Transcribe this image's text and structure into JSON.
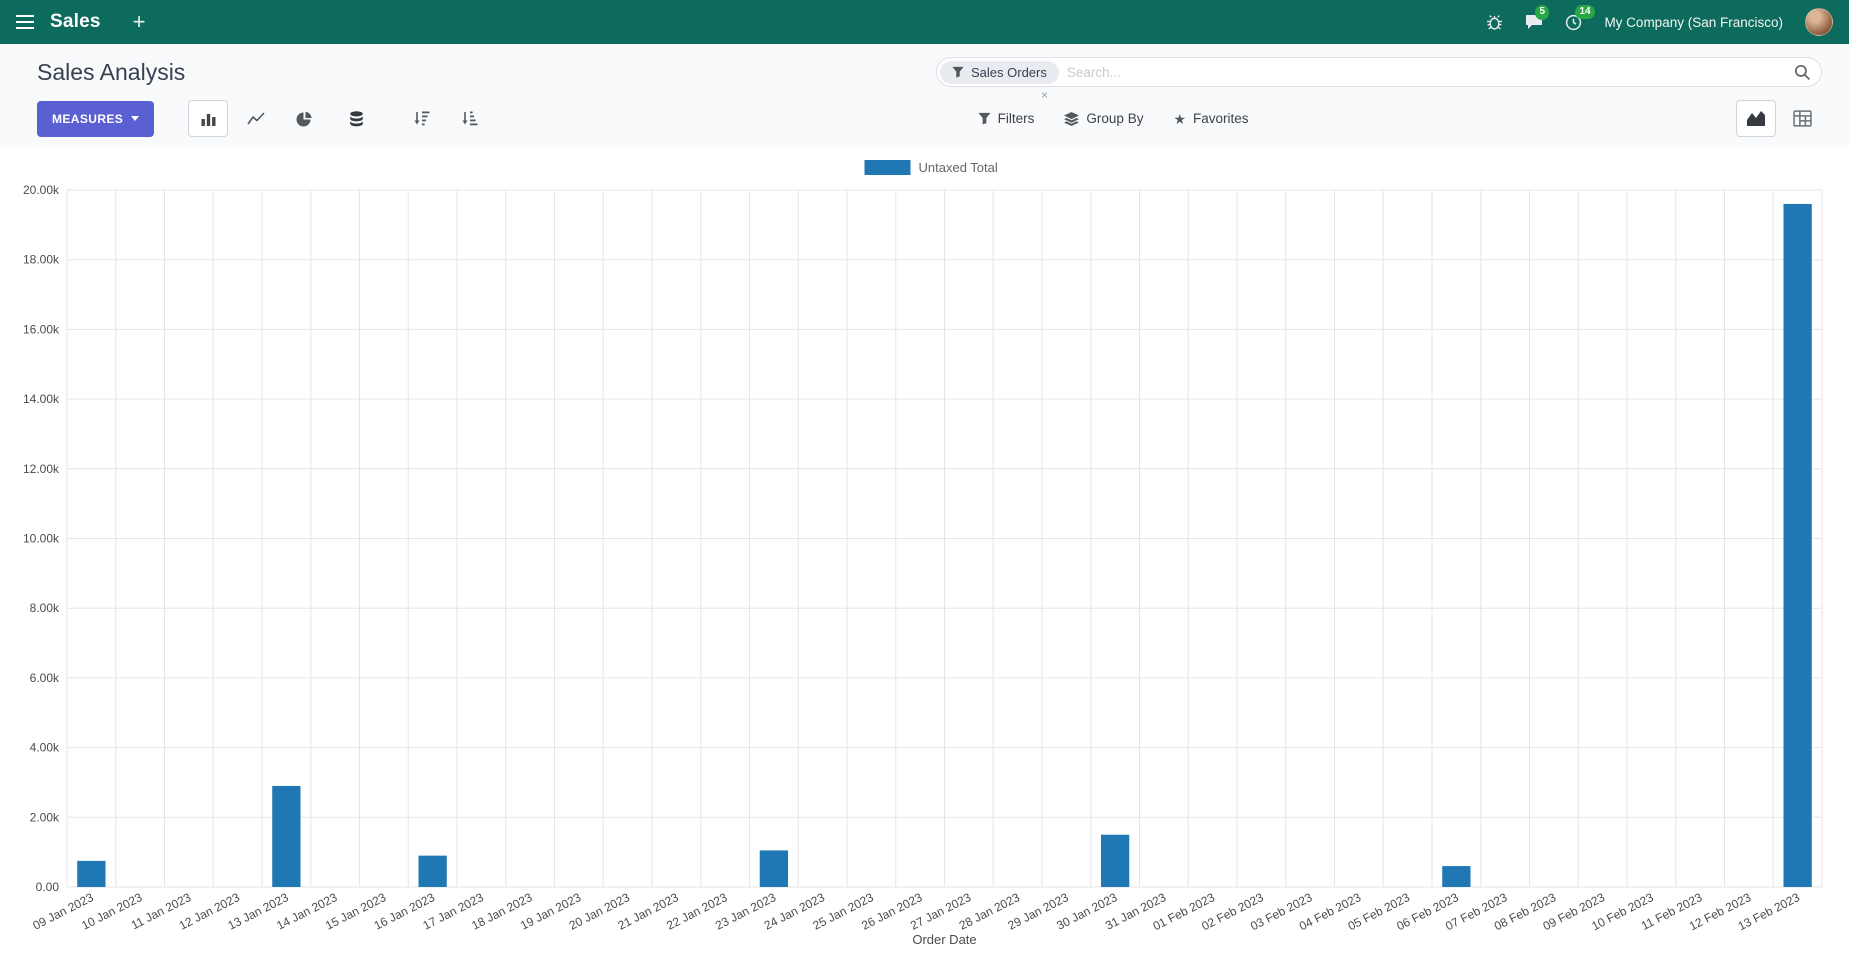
{
  "header": {
    "app_name": "Sales",
    "plus": "+",
    "company": "My Company (San Francisco)",
    "badges": {
      "messages": "5",
      "activities": "14"
    }
  },
  "control_panel": {
    "title": "Sales Analysis",
    "search": {
      "facet": "Sales Orders",
      "facet_remove": "×",
      "placeholder": "Search..."
    },
    "measures_label": "MEASURES",
    "filters_label": "Filters",
    "group_by_label": "Group By",
    "favorites_label": "Favorites"
  },
  "icons": [
    "menu-icon",
    "plus-icon",
    "bug-icon",
    "chat-icon",
    "clock-icon",
    "funnel-icon",
    "layers-icon",
    "star-icon",
    "caret-down-icon",
    "bar-chart-icon",
    "line-chart-icon",
    "pie-chart-icon",
    "stacked-icon",
    "sort-desc-icon",
    "sort-asc-icon",
    "area-chart-icon",
    "pivot-icon",
    "search-icon"
  ],
  "colors": {
    "header_bg": "#0c6b5d",
    "accent": "#5a5fd1",
    "bar_blue": "#1f77b4",
    "badge_green": "#28a745",
    "facet_bg": "#e9ebf0"
  },
  "chart_data": {
    "type": "bar",
    "title": "",
    "xlabel": "Order Date",
    "ylabel": "",
    "ylim": [
      0,
      20000
    ],
    "ytick_step": 2000,
    "ytick_labels": [
      "0.00",
      "2.00k",
      "4.00k",
      "6.00k",
      "8.00k",
      "10.00k",
      "12.00k",
      "14.00k",
      "16.00k",
      "18.00k",
      "20.00k"
    ],
    "grid": true,
    "legend_position": "top",
    "categories": [
      "09 Jan 2023",
      "10 Jan 2023",
      "11 Jan 2023",
      "12 Jan 2023",
      "13 Jan 2023",
      "14 Jan 2023",
      "15 Jan 2023",
      "16 Jan 2023",
      "17 Jan 2023",
      "18 Jan 2023",
      "19 Jan 2023",
      "20 Jan 2023",
      "21 Jan 2023",
      "22 Jan 2023",
      "23 Jan 2023",
      "24 Jan 2023",
      "25 Jan 2023",
      "26 Jan 2023",
      "27 Jan 2023",
      "28 Jan 2023",
      "29 Jan 2023",
      "30 Jan 2023",
      "31 Jan 2023",
      "01 Feb 2023",
      "02 Feb 2023",
      "03 Feb 2023",
      "04 Feb 2023",
      "05 Feb 2023",
      "06 Feb 2023",
      "07 Feb 2023",
      "08 Feb 2023",
      "09 Feb 2023",
      "10 Feb 2023",
      "11 Feb 2023",
      "12 Feb 2023",
      "13 Feb 2023"
    ],
    "series": [
      {
        "name": "Untaxed Total",
        "color": "#1f77b4",
        "values": [
          750,
          0,
          0,
          0,
          2900,
          0,
          0,
          900,
          0,
          0,
          0,
          0,
          0,
          0,
          1050,
          0,
          0,
          0,
          0,
          0,
          0,
          1500,
          0,
          0,
          0,
          0,
          0,
          0,
          600,
          0,
          0,
          0,
          0,
          0,
          0,
          19600
        ]
      }
    ]
  }
}
